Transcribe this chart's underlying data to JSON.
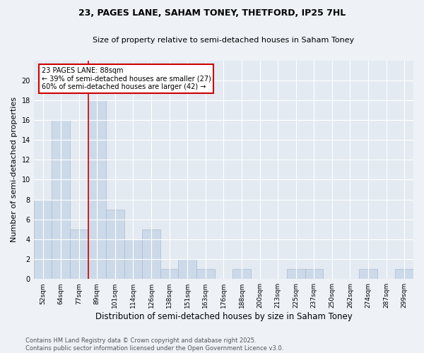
{
  "title_line1": "23, PAGES LANE, SAHAM TONEY, THETFORD, IP25 7HL",
  "title_line2": "Size of property relative to semi-detached houses in Saham Toney",
  "categories": [
    "52sqm",
    "64sqm",
    "77sqm",
    "89sqm",
    "101sqm",
    "114sqm",
    "126sqm",
    "138sqm",
    "151sqm",
    "163sqm",
    "176sqm",
    "188sqm",
    "200sqm",
    "213sqm",
    "225sqm",
    "237sqm",
    "250sqm",
    "262sqm",
    "274sqm",
    "287sqm",
    "299sqm"
  ],
  "values": [
    8,
    16,
    5,
    18,
    7,
    4,
    5,
    1,
    2,
    1,
    0,
    1,
    0,
    0,
    1,
    1,
    0,
    0,
    1,
    0,
    1
  ],
  "bar_color": "#ccd9e8",
  "bar_edge_color": "#aabbd0",
  "vline_color": "#cc0000",
  "annotation_text": "23 PAGES LANE: 88sqm\n← 39% of semi-detached houses are smaller (27)\n60% of semi-detached houses are larger (42) →",
  "annotation_box_edge": "#cc0000",
  "xlabel": "Distribution of semi-detached houses by size in Saham Toney",
  "ylabel": "Number of semi-detached properties",
  "ylabel_fontsize": 8,
  "xlabel_fontsize": 8.5,
  "footer": "Contains HM Land Registry data © Crown copyright and database right 2025.\nContains public sector information licensed under the Open Government Licence v3.0.",
  "background_color": "#eef2f7",
  "plot_background": "#e4eaf2",
  "grid_color": "#ffffff",
  "ylim": [
    0,
    22
  ],
  "title_fontsize": 9,
  "subtitle_fontsize": 8
}
